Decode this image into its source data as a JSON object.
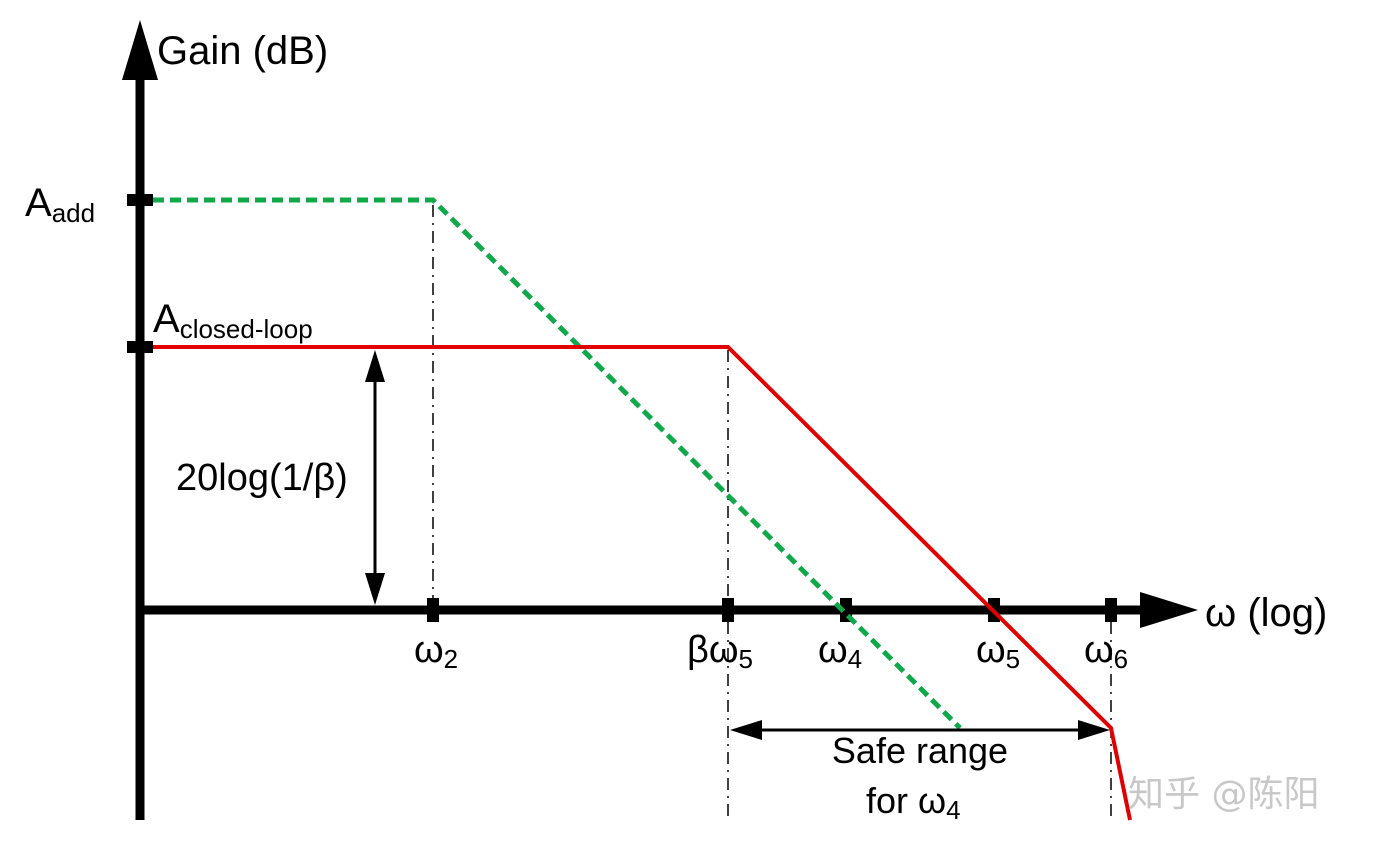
{
  "axes": {
    "y_label": "Gain (dB)",
    "x_label": "ω (log)"
  },
  "y_ticks": {
    "a_add": {
      "base": "A",
      "sub": "add"
    },
    "a_closed_loop": {
      "base": "A",
      "sub": "closed-loop"
    }
  },
  "x_ticks": {
    "w2": {
      "base": "ω",
      "sub": "2"
    },
    "beta_w5": {
      "base": "βω",
      "sub": "5"
    },
    "w4": {
      "base": "ω",
      "sub": "4"
    },
    "w5": {
      "base": "ω",
      "sub": "5"
    },
    "w6": {
      "base": "ω",
      "sub": "6"
    }
  },
  "annotations": {
    "feedback_gap": "20log(1/β)",
    "safe_range_line1": "Safe range",
    "safe_range_line2_prefix": "for ω",
    "safe_range_line2_sub": "4"
  },
  "colors": {
    "axis": "#000000",
    "closed_loop_curve": "#e00000",
    "additional_curve": "#10a84a",
    "watermark": "#c8c8c8"
  },
  "watermark": "知乎 @陈阳"
}
